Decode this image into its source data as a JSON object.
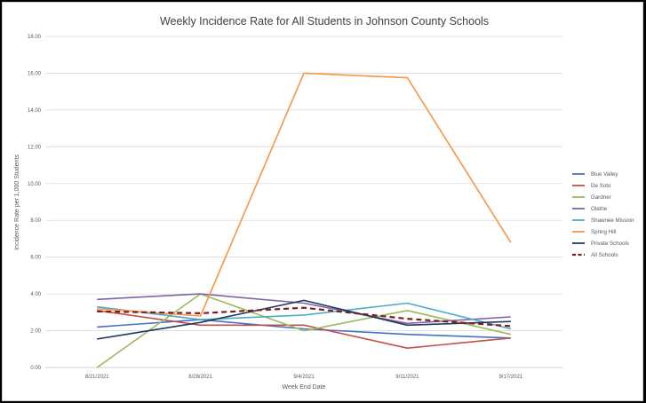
{
  "chart_data": {
    "type": "line",
    "title": "Weekly Incidence Rate for All Students in Johnson County Schools",
    "xlabel": "Week End Date",
    "ylabel": "Incidence Rate per 1,000 Students",
    "categories": [
      "8/21/2021",
      "8/28/2021",
      "9/4/2021",
      "9/11/2021",
      "9/17/2021"
    ],
    "ylim": [
      0,
      18
    ],
    "yticks": [
      "0.00",
      "2.00",
      "4.00",
      "6.00",
      "8.00",
      "10.00",
      "12.00",
      "14.00",
      "16.00",
      "18.00"
    ],
    "grid": true,
    "legend_position": "right",
    "series": [
      {
        "name": "Blue Valley",
        "color": "#4472c4",
        "dashed": false,
        "values": [
          2.2,
          2.6,
          2.1,
          1.8,
          1.6
        ]
      },
      {
        "name": "De Soto",
        "color": "#c0504d",
        "dashed": false,
        "values": [
          3.1,
          2.3,
          2.3,
          1.05,
          1.6
        ]
      },
      {
        "name": "Gardner",
        "color": "#9bbb59",
        "dashed": false,
        "values": [
          0.0,
          4.0,
          2.0,
          3.1,
          1.8
        ]
      },
      {
        "name": "Olathe",
        "color": "#8064a2",
        "dashed": false,
        "values": [
          3.7,
          4.0,
          3.5,
          2.4,
          2.75
        ]
      },
      {
        "name": "Shawnee Mission",
        "color": "#4bacc6",
        "dashed": false,
        "values": [
          3.3,
          2.6,
          2.85,
          3.5,
          2.1
        ]
      },
      {
        "name": "Spring Hill",
        "color": "#f79646",
        "dashed": false,
        "values": [
          3.2,
          2.8,
          16.0,
          15.75,
          6.8
        ]
      },
      {
        "name": "Private Schools",
        "color": "#1f3864",
        "dashed": false,
        "values": [
          1.55,
          2.45,
          3.65,
          2.3,
          2.5
        ]
      },
      {
        "name": "All Schools",
        "color": "#7f1d1d",
        "dashed": true,
        "values": [
          3.05,
          2.95,
          3.25,
          2.65,
          2.25
        ]
      }
    ]
  }
}
